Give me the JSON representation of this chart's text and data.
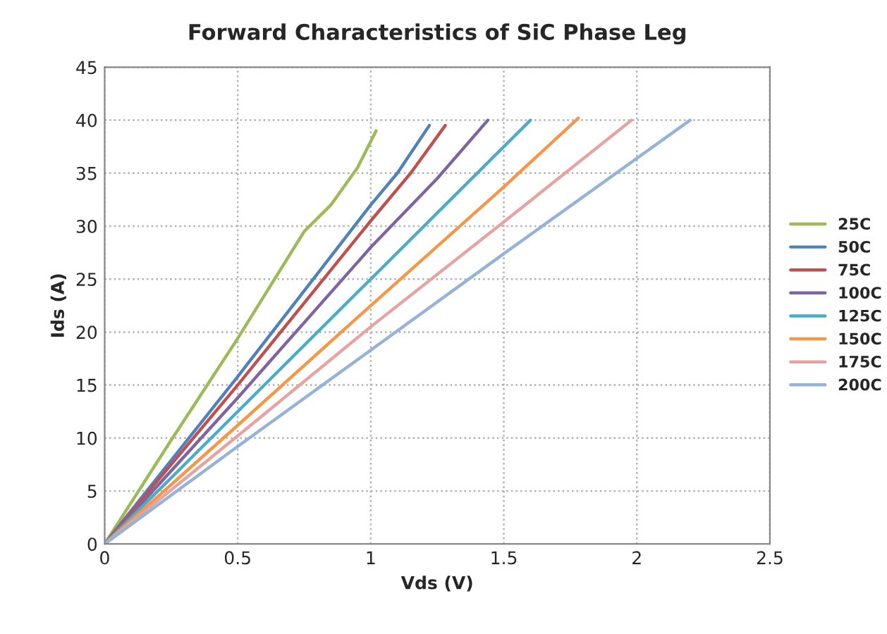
{
  "chart_data": {
    "type": "line",
    "title": "Forward Characteristics of SiC Phase Leg",
    "xlabel": "Vds (V)",
    "ylabel": "Ids (A)",
    "xlim": [
      0,
      2.5
    ],
    "xticks": [
      0,
      0.5,
      1,
      1.5,
      2,
      2.5
    ],
    "ylim": [
      0,
      45
    ],
    "yticks": [
      0,
      5,
      10,
      15,
      20,
      25,
      30,
      35,
      40,
      45
    ],
    "grid": true,
    "legend": "right",
    "marker": "none",
    "line_style": "solid",
    "series": [
      {
        "name": "25C",
        "color": "#9bbb59",
        "x": [
          0,
          0.25,
          0.5,
          0.75,
          0.85,
          0.95,
          1.02
        ],
        "values": [
          0,
          9.8,
          19.4,
          29.5,
          32,
          35.5,
          39
        ]
      },
      {
        "name": "50C",
        "color": "#4f81bd",
        "x": [
          0,
          0.5,
          1.0,
          1.1,
          1.22
        ],
        "values": [
          0,
          15.8,
          32,
          35,
          39.5
        ]
      },
      {
        "name": "75C",
        "color": "#c0504d",
        "x": [
          0,
          0.5,
          1.0,
          1.15,
          1.28
        ],
        "values": [
          0,
          15,
          30.5,
          35,
          39.5
        ]
      },
      {
        "name": "100C",
        "color": "#8064a2",
        "x": [
          0,
          0.5,
          1.0,
          1.25,
          1.44
        ],
        "values": [
          0,
          13.8,
          28,
          34.5,
          40
        ]
      },
      {
        "name": "125C",
        "color": "#4bacc6",
        "x": [
          0,
          0.5,
          1.0,
          1.3,
          1.6
        ],
        "values": [
          0,
          12.5,
          25,
          32.5,
          40
        ]
      },
      {
        "name": "150C",
        "color": "#f79646",
        "x": [
          0,
          0.5,
          1.0,
          1.5,
          1.78
        ],
        "values": [
          0,
          11.2,
          22.5,
          33.7,
          40.2
        ]
      },
      {
        "name": "175C",
        "color": "#e6a3a0",
        "x": [
          0,
          0.5,
          1.0,
          1.5,
          1.98
        ],
        "values": [
          0,
          10.2,
          20.5,
          30.4,
          40
        ]
      },
      {
        "name": "200C",
        "color": "#95b3d7",
        "x": [
          0,
          0.5,
          1.0,
          1.5,
          2.0,
          2.2
        ],
        "values": [
          0,
          9.2,
          18.3,
          27.4,
          36.4,
          40
        ]
      }
    ]
  }
}
